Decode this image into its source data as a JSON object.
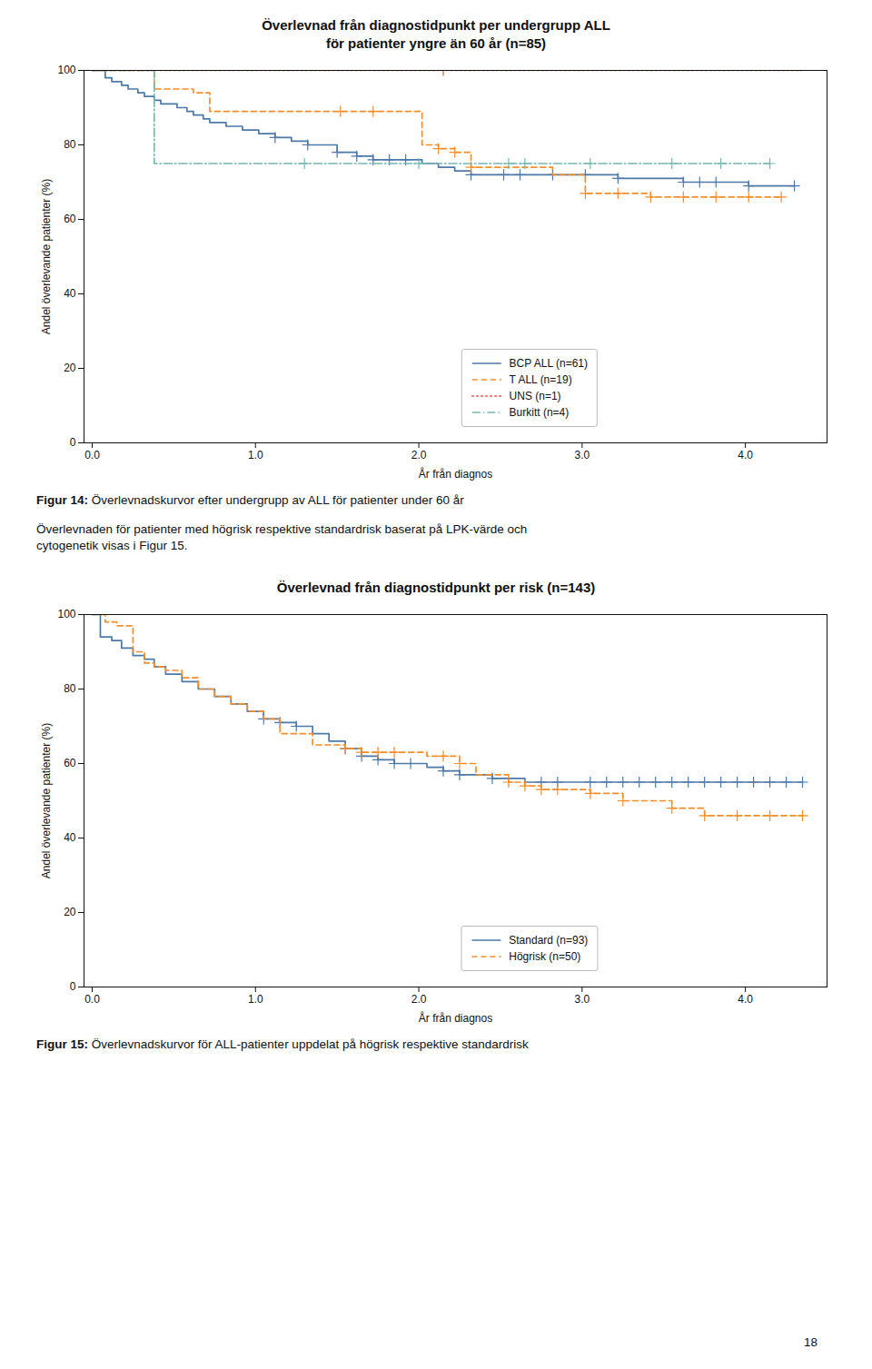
{
  "chart_data": [
    {
      "type": "line",
      "title": "Överlevnad från diagnostidpunkt per undergrupp ALL\nför patienter yngre än 60 år (n=85)",
      "xlabel": "År från diagnos",
      "ylabel": "Andel överlevande patienter (%)",
      "xlim": [
        -0.05,
        4.5
      ],
      "ylim": [
        0,
        100
      ],
      "xticks": [
        0,
        1,
        2,
        3,
        4
      ],
      "yticks": [
        0,
        20,
        40,
        60,
        80,
        100
      ],
      "grid": false,
      "legend": "bottom",
      "caption": "Figur 14: Överlevnadskurvor efter undergrupp av ALL för patienter under 60 år",
      "annotations": [
        "Överlevnaden för patienter med högrisk respektive standardrisk baserat på LPK-värde och\ncytogenetik visas i Figur 15."
      ],
      "series": [
        {
          "name": "BCP ALL (n=61)",
          "line_style": "solid",
          "marker": "plus",
          "x": [
            0,
            0.08,
            0.12,
            0.18,
            0.22,
            0.28,
            0.32,
            0.38,
            0.42,
            0.52,
            0.58,
            0.62,
            0.68,
            0.72,
            0.82,
            0.92,
            1.02,
            1.12,
            1.22,
            1.32,
            1.5,
            1.62,
            1.72,
            1.82,
            1.92,
            2.02,
            2.12,
            2.22,
            2.32,
            2.52,
            2.62,
            2.82,
            3.02,
            3.22,
            3.52,
            3.62,
            3.72,
            3.82,
            4.02,
            4.3
          ],
          "values": [
            100,
            98,
            97,
            96,
            95,
            94,
            93,
            92,
            91,
            90,
            89,
            88,
            87,
            86,
            85,
            84,
            83,
            82,
            81,
            80,
            78,
            77,
            76,
            76,
            76,
            75,
            74,
            73,
            72,
            72,
            72,
            72,
            72,
            71,
            71,
            70,
            70,
            70,
            69,
            69
          ],
          "censor_x": [
            1.12,
            1.32,
            1.5,
            1.62,
            1.72,
            1.82,
            1.92,
            2.32,
            2.52,
            2.62,
            2.82,
            3.02,
            3.22,
            3.62,
            3.72,
            3.82,
            4.02,
            4.3
          ],
          "censor_y": [
            82,
            80,
            78,
            77,
            76,
            76,
            76,
            72,
            72,
            72,
            72,
            72,
            71,
            70,
            70,
            70,
            69,
            69
          ]
        },
        {
          "name": "T ALL (n=19)",
          "line_style": "dashed",
          "marker": "plus",
          "x": [
            0,
            0.32,
            0.38,
            0.62,
            0.72,
            1.22,
            1.52,
            1.72,
            2.02,
            2.12,
            2.22,
            2.32,
            2.82,
            3.02,
            3.22,
            3.42,
            3.62,
            3.82,
            4.02,
            4.22
          ],
          "values": [
            100,
            100,
            95,
            94,
            89,
            89,
            89,
            89,
            80,
            79,
            78,
            74,
            72,
            67,
            67,
            66,
            66,
            66,
            66,
            66
          ],
          "censor_x": [
            1.52,
            1.72,
            2.12,
            2.22,
            2.32,
            3.02,
            3.22,
            3.42,
            3.62,
            3.82,
            4.02,
            4.22
          ],
          "censor_y": [
            89,
            89,
            79,
            78,
            74,
            67,
            67,
            66,
            66,
            66,
            66,
            66
          ]
        },
        {
          "name": "UNS (n=1)",
          "line_style": "dotted",
          "marker": "plus",
          "x": [
            0,
            2.15,
            4.35
          ],
          "values": [
            100,
            100,
            100
          ],
          "censor_x": [
            2.15
          ],
          "censor_y": [
            100
          ]
        },
        {
          "name": "Burkitt (n=4)",
          "line_style": "dashdot",
          "marker": "plus",
          "x": [
            0,
            0.32,
            0.38,
            1.3,
            2.0,
            2.55,
            2.65,
            3.05,
            3.55,
            3.85,
            4.15
          ],
          "values": [
            100,
            100,
            75,
            75,
            75,
            75,
            75,
            75,
            75,
            75,
            75
          ],
          "censor_x": [
            1.3,
            2.0,
            2.55,
            2.65,
            3.05,
            3.55,
            3.85,
            4.15
          ],
          "censor_y": [
            75,
            75,
            75,
            75,
            75,
            75,
            75,
            75
          ]
        }
      ]
    },
    {
      "type": "line",
      "title": "Överlevnad från diagnostidpunkt per risk  (n=143)",
      "xlabel": "År från diagnos",
      "ylabel": "Andel överlevande patienter (%)",
      "xlim": [
        -0.05,
        4.5
      ],
      "ylim": [
        0,
        100
      ],
      "xticks": [
        0,
        1,
        2,
        3,
        4
      ],
      "yticks": [
        0,
        20,
        40,
        60,
        80,
        100
      ],
      "grid": false,
      "legend": "bottom",
      "caption": "Figur 15: Överlevnadskurvor för ALL-patienter uppdelat på högrisk respektive standardrisk",
      "series": [
        {
          "name": "Standard (n=93)",
          "line_style": "solid",
          "marker": "plus",
          "x": [
            0,
            0.05,
            0.12,
            0.18,
            0.25,
            0.32,
            0.38,
            0.45,
            0.55,
            0.65,
            0.75,
            0.85,
            0.95,
            1.05,
            1.15,
            1.25,
            1.35,
            1.45,
            1.55,
            1.65,
            1.75,
            1.85,
            1.95,
            2.05,
            2.15,
            2.25,
            2.35,
            2.45,
            2.55,
            2.65,
            2.75,
            2.85,
            3.05,
            3.15,
            3.25,
            3.35,
            3.45,
            3.55,
            3.65,
            3.75,
            3.85,
            3.95,
            4.05,
            4.15,
            4.25,
            4.35
          ],
          "values": [
            100,
            94,
            93,
            91,
            89,
            88,
            86,
            84,
            82,
            80,
            78,
            76,
            74,
            72,
            71,
            70,
            68,
            66,
            64,
            62,
            61,
            60,
            60,
            59,
            58,
            57,
            57,
            56,
            56,
            55,
            55,
            55,
            55,
            55,
            55,
            55,
            55,
            55,
            55,
            55,
            55,
            55,
            55,
            55,
            55,
            55
          ],
          "censor_x": [
            1.05,
            1.15,
            1.25,
            1.55,
            1.65,
            1.75,
            1.85,
            1.95,
            2.15,
            2.25,
            2.45,
            2.75,
            2.85,
            3.05,
            3.15,
            3.25,
            3.35,
            3.45,
            3.55,
            3.65,
            3.75,
            3.85,
            3.95,
            4.05,
            4.15,
            4.25,
            4.35
          ],
          "censor_y": [
            72,
            71,
            70,
            64,
            62,
            61,
            60,
            60,
            58,
            57,
            56,
            55,
            55,
            55,
            55,
            55,
            55,
            55,
            55,
            55,
            55,
            55,
            55,
            55,
            55,
            55,
            55
          ]
        },
        {
          "name": "Högrisk (n=50)",
          "line_style": "dashed",
          "marker": "plus",
          "x": [
            0,
            0.08,
            0.15,
            0.25,
            0.32,
            0.38,
            0.45,
            0.55,
            0.65,
            0.75,
            0.85,
            0.95,
            1.05,
            1.15,
            1.35,
            1.55,
            1.65,
            1.75,
            1.85,
            2.05,
            2.15,
            2.25,
            2.35,
            2.55,
            2.65,
            2.75,
            2.85,
            3.05,
            3.25,
            3.55,
            3.75,
            3.95,
            4.15,
            4.35
          ],
          "values": [
            100,
            98,
            97,
            90,
            87,
            86,
            85,
            83,
            80,
            78,
            76,
            74,
            72,
            68,
            65,
            64,
            63,
            63,
            63,
            62,
            62,
            60,
            57,
            55,
            54,
            53,
            53,
            52,
            50,
            48,
            46,
            46,
            46,
            46
          ],
          "censor_x": [
            1.55,
            1.65,
            1.75,
            1.85,
            2.15,
            2.25,
            2.55,
            2.65,
            2.75,
            2.85,
            3.05,
            3.25,
            3.55,
            3.75,
            3.95,
            4.15,
            4.35
          ],
          "censor_y": [
            64,
            63,
            63,
            63,
            62,
            60,
            55,
            54,
            53,
            53,
            52,
            50,
            48,
            46,
            46,
            46,
            46
          ]
        }
      ]
    }
  ],
  "page_number": "18"
}
